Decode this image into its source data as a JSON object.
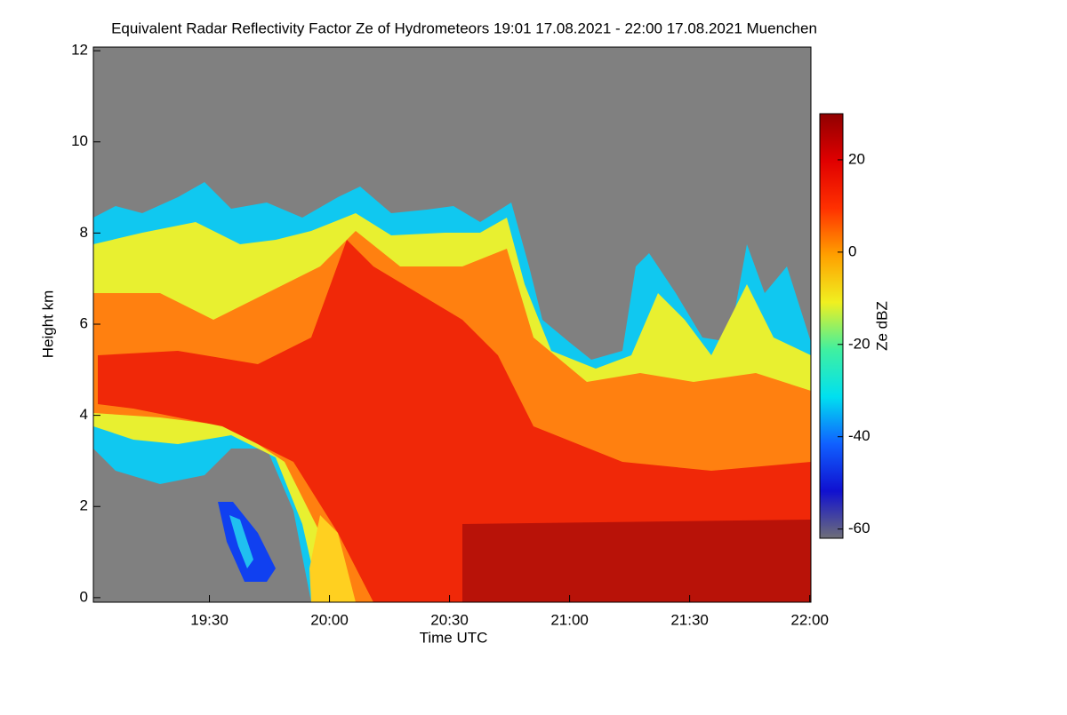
{
  "chart_data": {
    "type": "heatmap",
    "title": "Equivalent Radar Reflectivity Factor Ze of Hydrometeors   19:01 17.08.2021 - 22:00 17.08.2021 Muenchen",
    "x_label": "Time UTC",
    "y_label": "Height km",
    "colorbar_label": "Ze dBZ",
    "xlim": [
      19.0167,
      22.005
    ],
    "xticks": [
      {
        "value": 19.5,
        "label": "19:30"
      },
      {
        "value": 20.0,
        "label": "20:00"
      },
      {
        "value": 20.5,
        "label": "20:30"
      },
      {
        "value": 21.0,
        "label": "21:00"
      },
      {
        "value": 21.5,
        "label": "21:30"
      },
      {
        "value": 22.0,
        "label": "22:00"
      }
    ],
    "ylim": [
      -0.1,
      12.08
    ],
    "yticks": [
      0,
      2,
      4,
      6,
      8,
      10,
      12
    ],
    "clim": [
      -62,
      30
    ],
    "cticks": [
      -60,
      -40,
      -20,
      0,
      20
    ],
    "colormap": [
      "#6e6e78",
      "#1010d0",
      "#1060ff",
      "#00e0f0",
      "#40f0a0",
      "#f0f020",
      "#ffa000",
      "#ff3000",
      "#e00000",
      "#900000"
    ],
    "background_color": "#808080"
  }
}
